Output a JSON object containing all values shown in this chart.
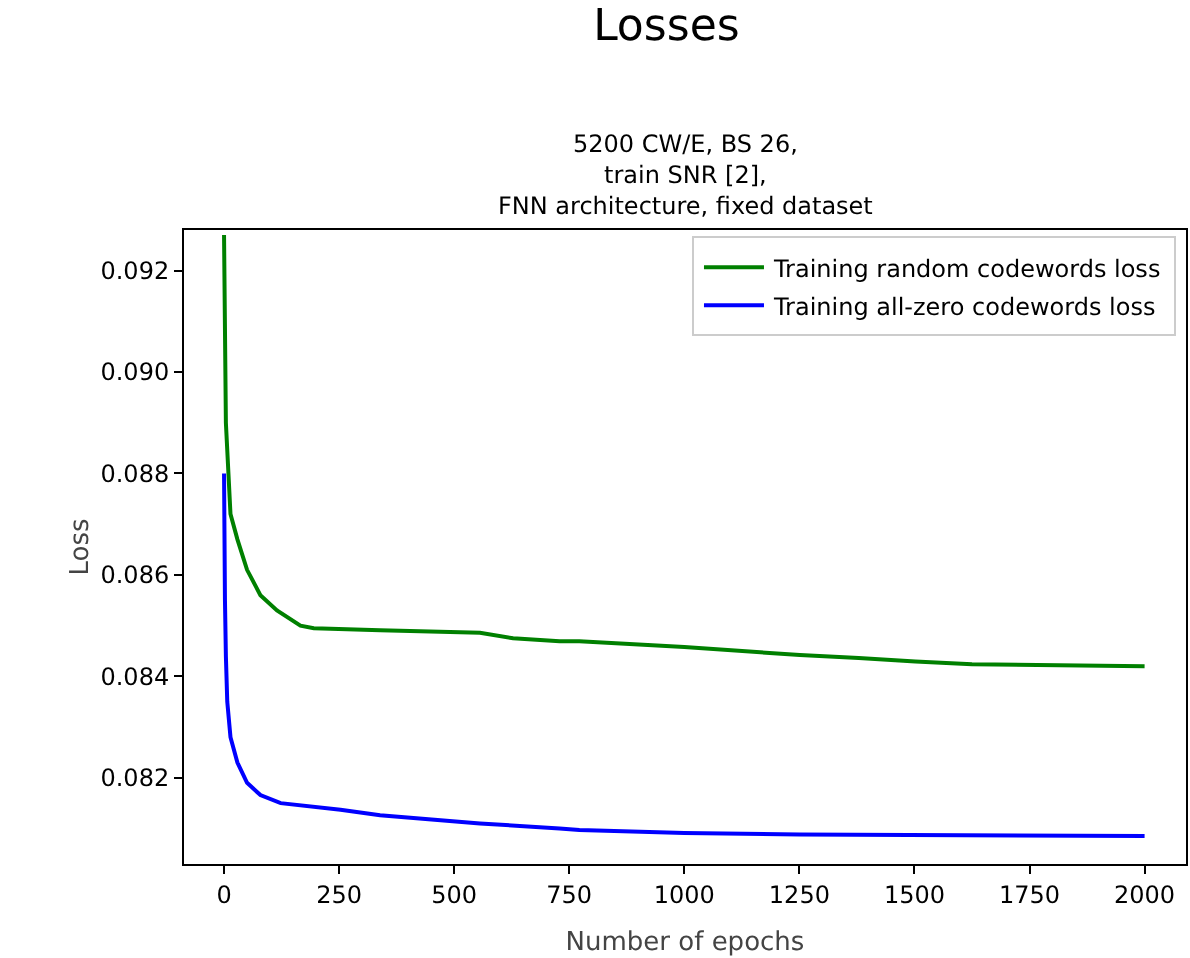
{
  "chart_data": {
    "type": "line",
    "title": "Losses",
    "subtitle": "5200 CW/E, BS 26,\ntrain SNR [2],\nFNN architecture, fixed dataset",
    "xlabel": "Number of epochs",
    "ylabel": "Loss",
    "xlim": [
      -87,
      2090
    ],
    "xticks": [
      0,
      250,
      500,
      750,
      1000,
      1250,
      1500,
      1750,
      2000
    ],
    "ylim": [
      0.0803,
      0.0928
    ],
    "yticks": [
      {
        "value": 0.082,
        "label": "0.082"
      },
      {
        "value": 0.084,
        "label": "0.084"
      },
      {
        "value": 0.086,
        "label": "0.086"
      },
      {
        "value": 0.088,
        "label": "0.088"
      },
      {
        "value": 0.09,
        "label": "0.090"
      },
      {
        "value": 0.092,
        "label": "0.092"
      }
    ],
    "grid": false,
    "legend": "top right",
    "marker": "none",
    "line_style": "solid",
    "series": [
      {
        "name": "Training random codewords loss",
        "color": "#008000",
        "x": [
          0,
          4,
          14,
          29,
          50,
          79,
          115,
          166,
          195,
          339,
          556,
          628,
          729,
          772,
          1000,
          1251,
          1379,
          1502,
          1625,
          2000
        ],
        "values": [
          0.0927,
          0.089,
          0.0872,
          0.0867,
          0.0861,
          0.0856,
          0.0853,
          0.085,
          0.08495,
          0.08491,
          0.08486,
          0.08475,
          0.08469,
          0.08469,
          0.08458,
          0.08442,
          0.08436,
          0.08429,
          0.08424,
          0.0842
        ]
      },
      {
        "name": "Training all-zero codewords loss",
        "color": "#0000ff",
        "x": [
          0,
          2,
          4,
          7,
          14,
          29,
          50,
          79,
          123,
          253,
          339,
          556,
          729,
          772,
          1000,
          1251,
          2000
        ],
        "values": [
          0.088,
          0.0855,
          0.0844,
          0.0835,
          0.0828,
          0.0823,
          0.0819,
          0.08166,
          0.0815,
          0.08137,
          0.08126,
          0.0811,
          0.081,
          0.08097,
          0.08091,
          0.08088,
          0.08085
        ]
      }
    ]
  }
}
